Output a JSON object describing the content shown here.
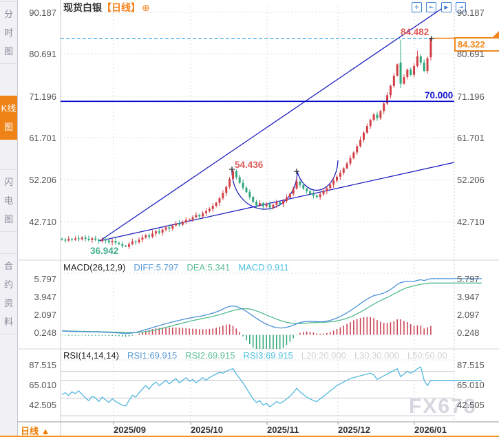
{
  "titlebar": {
    "symbol": "现货白银",
    "period": "【日线】",
    "add_icon": "⊕"
  },
  "toolbar_icons": [
    {
      "name": "pan-crosshair-icon",
      "glyph": "✛"
    },
    {
      "name": "fit-left-icon",
      "glyph": "⇤"
    },
    {
      "name": "auto-scroll-icon",
      "glyph": "▶"
    },
    {
      "name": "exit-right-icon",
      "glyph": "⇥"
    }
  ],
  "sidebar": {
    "tabs": [
      {
        "label": "分时图",
        "active": false
      },
      {
        "label": "K线图",
        "active": true
      },
      {
        "label": "闪电图",
        "active": false
      },
      {
        "label": "合约资料",
        "active": false
      }
    ]
  },
  "bottom_bar": {
    "tab_label": "日线",
    "tab_arrow": "▲"
  },
  "watermark": "FX678",
  "annotations": {
    "high": "84.482",
    "mid_peak": "54.436",
    "low": "36.942",
    "support": "70.000",
    "last_price": "84.322"
  },
  "main_axis": {
    "labels": [
      "90.187",
      "80.691",
      "71.196",
      "61.701",
      "52.206",
      "42.710"
    ]
  },
  "x_axis": {
    "labels": [
      "2025/09",
      "2025/10",
      "2025/11",
      "2025/12",
      "2026/01"
    ]
  },
  "macd_panel": {
    "title": "MACD(26,12,9)",
    "diff_label": "DIFF:5.797",
    "dea_label": "DEA:5.341",
    "macd_label": "MACD:0.911",
    "axis_labels": [
      "5.797",
      "3.947",
      "2.097",
      "0.248"
    ]
  },
  "rsi_panel": {
    "title": "RSI(14,14,14)",
    "rsi1_label": "RSI1:69.915",
    "rsi2_label": "RSI2:69.915",
    "rsi3_label": "RSI3:69.915",
    "l20_label": "L20:20.000",
    "l30_label": "L30:30.000",
    "l50_label": "L50:50.00",
    "axis_labels": [
      "87.515",
      "65.010",
      "42.505"
    ]
  },
  "colors": {
    "up_candle": "#d23f45",
    "down_candle": "#2fa87c",
    "trendline": "#2020c0",
    "support_line": "#0a0acd",
    "last_price_line": "#2e9fe6",
    "accent_orange": "#f08318",
    "diff_line": "#4a90d9",
    "dea_line": "#4fba8c",
    "rsi_line": "#52b7de",
    "hist_up": "#cc4455",
    "hist_down": "#33aa77"
  },
  "chart_data": {
    "type": "candlestick",
    "title": "现货白银 日线 (Spot Silver, daily)",
    "y_ticks": [
      90.187,
      80.691,
      71.196,
      61.701,
      52.206,
      42.71
    ],
    "x_ticks": [
      "2025/09",
      "2025/10",
      "2025/11",
      "2025/12",
      "2026/01"
    ],
    "levels": {
      "last_price": 84.322,
      "support": 70.0,
      "high": 84.482,
      "mid_peak": 54.436,
      "low": 36.942
    },
    "candles": {
      "closes": [
        38.6,
        38.4,
        38.8,
        38.6,
        38.9,
        38.7,
        39.1,
        38.8,
        38.5,
        38.9,
        38.6,
        38.3,
        38.7,
        38.4,
        38.0,
        38.3,
        37.9,
        37.6,
        37.2,
        37.0,
        37.6,
        38.2,
        38.0,
        38.6,
        39.1,
        39.6,
        39.3,
        40.0,
        40.5,
        40.2,
        40.9,
        41.4,
        41.1,
        41.8,
        42.3,
        42.0,
        42.6,
        43.1,
        43.2,
        43.7,
        44.2,
        43.9,
        44.6,
        45.1,
        45.6,
        46.3,
        47.0,
        48.0,
        49.2,
        50.6,
        52.4,
        54.2,
        52.8,
        51.5,
        50.4,
        49.4,
        48.3,
        47.2,
        46.4,
        46.9,
        46.2,
        46.6,
        45.9,
        46.5,
        47.1,
        46.7,
        47.4,
        48.2,
        49.0,
        50.2,
        51.8,
        51.0,
        50.2,
        49.6,
        49.0,
        48.6,
        48.3,
        48.9,
        49.6,
        50.3,
        51.1,
        52.0,
        52.9,
        53.8,
        54.8,
        55.9,
        57.1,
        58.4,
        59.8,
        61.3,
        62.9,
        64.4,
        65.8,
        67.0,
        66.2,
        67.8,
        69.5,
        71.4,
        73.5,
        75.8,
        78.4,
        74.0,
        75.5,
        77.2,
        76.0,
        78.0,
        80.2,
        78.8,
        76.9,
        79.8,
        84.322
      ],
      "special": {
        "19": {
          "low": 36.942
        },
        "51": {
          "high": 54.436
        },
        "70": {
          "high": 52.8
        },
        "101": {
          "open": 78.8,
          "high": 84.0,
          "low": 73.0
        },
        "106": {
          "high": 81.5
        },
        "110": {
          "open": 80.0,
          "high": 84.482,
          "low": 79.3
        }
      }
    },
    "macd": {
      "params": [
        26,
        12,
        9
      ],
      "diff_last": 5.797,
      "dea_last": 5.341,
      "macd_last": 0.911,
      "diff": [
        0.4,
        0.38,
        0.36,
        0.35,
        0.34,
        0.33,
        0.33,
        0.32,
        0.31,
        0.3,
        0.3,
        0.29,
        0.28,
        0.27,
        0.25,
        0.24,
        0.22,
        0.2,
        0.17,
        0.15,
        0.16,
        0.2,
        0.26,
        0.34,
        0.44,
        0.55,
        0.64,
        0.75,
        0.86,
        0.96,
        1.06,
        1.16,
        1.24,
        1.33,
        1.42,
        1.5,
        1.58,
        1.66,
        1.72,
        1.79,
        1.86,
        1.91,
        1.98,
        2.06,
        2.14,
        2.24,
        2.36,
        2.5,
        2.66,
        2.82,
        2.94,
        2.98,
        2.92,
        2.8,
        2.62,
        2.42,
        2.18,
        1.94,
        1.7,
        1.48,
        1.28,
        1.1,
        0.95,
        0.83,
        0.75,
        0.71,
        0.72,
        0.78,
        0.88,
        1.0,
        1.14,
        1.26,
        1.34,
        1.38,
        1.39,
        1.38,
        1.36,
        1.35,
        1.37,
        1.42,
        1.5,
        1.61,
        1.74,
        1.9,
        2.08,
        2.28,
        2.5,
        2.74,
        2.98,
        3.22,
        3.46,
        3.68,
        3.88,
        4.04,
        4.12,
        4.2,
        4.32,
        4.48,
        4.68,
        4.92,
        5.2,
        5.38,
        5.46,
        5.54,
        5.5,
        5.52,
        5.62,
        5.68,
        5.6,
        5.7,
        5.797
      ],
      "dea": [
        0.42,
        0.41,
        0.4,
        0.39,
        0.38,
        0.37,
        0.36,
        0.36,
        0.35,
        0.34,
        0.34,
        0.33,
        0.32,
        0.31,
        0.3,
        0.29,
        0.28,
        0.27,
        0.26,
        0.25,
        0.24,
        0.24,
        0.25,
        0.27,
        0.3,
        0.34,
        0.39,
        0.45,
        0.52,
        0.6,
        0.68,
        0.77,
        0.86,
        0.95,
        1.04,
        1.13,
        1.22,
        1.31,
        1.39,
        1.47,
        1.55,
        1.62,
        1.69,
        1.76,
        1.83,
        1.91,
        1.99,
        2.08,
        2.18,
        2.29,
        2.4,
        2.51,
        2.59,
        2.66,
        2.7,
        2.7,
        2.66,
        2.58,
        2.47,
        2.34,
        2.2,
        2.05,
        1.9,
        1.76,
        1.62,
        1.5,
        1.39,
        1.3,
        1.23,
        1.18,
        1.16,
        1.16,
        1.18,
        1.21,
        1.24,
        1.26,
        1.28,
        1.29,
        1.3,
        1.32,
        1.35,
        1.39,
        1.44,
        1.51,
        1.6,
        1.71,
        1.84,
        1.99,
        2.16,
        2.35,
        2.55,
        2.76,
        2.97,
        3.17,
        3.36,
        3.53,
        3.7,
        3.86,
        4.03,
        4.21,
        4.4,
        4.58,
        4.74,
        4.88,
        4.95,
        5.05,
        5.13,
        5.21,
        5.27,
        5.31,
        5.341
      ]
    },
    "rsi": {
      "params": [
        14,
        14,
        14
      ],
      "rsi_last": 69.915,
      "levels": [
        80,
        70,
        50,
        30
      ],
      "values": [
        54,
        56,
        53,
        57,
        55,
        58,
        54,
        50,
        47,
        52,
        50,
        46,
        51,
        48,
        45,
        49,
        46,
        44,
        42,
        41,
        47,
        53,
        51,
        56,
        60,
        64,
        60,
        65,
        68,
        64,
        67,
        70,
        66,
        69,
        72,
        67,
        70,
        73,
        69,
        71,
        67,
        70,
        73,
        70,
        73,
        75,
        77,
        79,
        78,
        80,
        82,
        83,
        77,
        72,
        67,
        61,
        55,
        49,
        45,
        47,
        42,
        44,
        40,
        43,
        46,
        44,
        46,
        49,
        52,
        56,
        61,
        57,
        54,
        51,
        49,
        47,
        46,
        49,
        52,
        55,
        58,
        61,
        64,
        66,
        68,
        70,
        72,
        73,
        74,
        75,
        76,
        77,
        78,
        76,
        71,
        73,
        75,
        77,
        79,
        81,
        83,
        74,
        77,
        80,
        78,
        80,
        83,
        85,
        70,
        64,
        69.915
      ]
    }
  }
}
